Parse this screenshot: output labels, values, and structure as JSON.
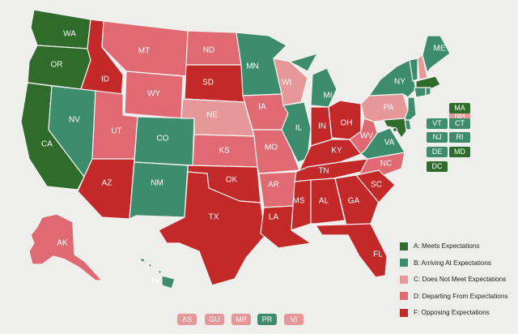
{
  "colors": {
    "A": "#2f6b2a",
    "B": "#3d8c6e",
    "C": "#e69898",
    "D": "#e06a74",
    "F": "#c4292a"
  },
  "legend": [
    {
      "grade": "A",
      "label": "A: Meets Expectations"
    },
    {
      "grade": "B",
      "label": "B: Arriving At Expectations"
    },
    {
      "grade": "C",
      "label": "C: Does Not Meet Expectations"
    },
    {
      "grade": "D",
      "label": "D: Departing From Expectations"
    },
    {
      "grade": "F",
      "label": "F: Opposing Expectations"
    }
  ],
  "states": {
    "WA": {
      "label": "WA",
      "grade": "A"
    },
    "OR": {
      "label": "OR",
      "grade": "A"
    },
    "CA": {
      "label": "CA",
      "grade": "A"
    },
    "ID": {
      "label": "ID",
      "grade": "F"
    },
    "NV": {
      "label": "NV",
      "grade": "B"
    },
    "MT": {
      "label": "MT",
      "grade": "D"
    },
    "WY": {
      "label": "WY",
      "grade": "D"
    },
    "UT": {
      "label": "UT",
      "grade": "D"
    },
    "AZ": {
      "label": "AZ",
      "grade": "F"
    },
    "CO": {
      "label": "CO",
      "grade": "B"
    },
    "NM": {
      "label": "NM",
      "grade": "B"
    },
    "ND": {
      "label": "ND",
      "grade": "D"
    },
    "SD": {
      "label": "SD",
      "grade": "F"
    },
    "NE": {
      "label": "NE",
      "grade": "C"
    },
    "KS": {
      "label": "KS",
      "grade": "D"
    },
    "OK": {
      "label": "OK",
      "grade": "F"
    },
    "TX": {
      "label": "TX",
      "grade": "F"
    },
    "MN": {
      "label": "MN",
      "grade": "B"
    },
    "IA": {
      "label": "IA",
      "grade": "D"
    },
    "MO": {
      "label": "MO",
      "grade": "D"
    },
    "AR": {
      "label": "AR",
      "grade": "D"
    },
    "LA": {
      "label": "LA",
      "grade": "F"
    },
    "WI": {
      "label": "WI",
      "grade": "C"
    },
    "IL": {
      "label": "IL",
      "grade": "B"
    },
    "MI": {
      "label": "MI",
      "grade": "B"
    },
    "IN": {
      "label": "IN",
      "grade": "F"
    },
    "OH": {
      "label": "OH",
      "grade": "F"
    },
    "KY": {
      "label": "KY",
      "grade": "F"
    },
    "TN": {
      "label": "TN",
      "grade": "F"
    },
    "MS": {
      "label": "MS",
      "grade": "F"
    },
    "AL": {
      "label": "AL",
      "grade": "F"
    },
    "GA": {
      "label": "GA",
      "grade": "F"
    },
    "FL": {
      "label": "FL",
      "grade": "F"
    },
    "SC": {
      "label": "SC",
      "grade": "F"
    },
    "NC": {
      "label": "NC",
      "grade": "D"
    },
    "VA": {
      "label": "VA",
      "grade": "B"
    },
    "WV": {
      "label": "WV",
      "grade": "D"
    },
    "PA": {
      "label": "PA",
      "grade": "C"
    },
    "NY": {
      "label": "NY",
      "grade": "B"
    },
    "ME": {
      "label": "ME",
      "grade": "B"
    },
    "VT": {
      "label": "VT",
      "grade": "B"
    },
    "NH": {
      "label": "NH",
      "grade": "C"
    },
    "MA": {
      "label": "MA",
      "grade": "A"
    },
    "RI": {
      "label": "RI",
      "grade": "B"
    },
    "CT": {
      "label": "CT",
      "grade": "B"
    },
    "NJ": {
      "label": "NJ",
      "grade": "B"
    },
    "DE": {
      "label": "DE",
      "grade": "B"
    },
    "MD": {
      "label": "MD",
      "grade": "A"
    },
    "DC": {
      "label": "DC",
      "grade": "A"
    },
    "AK": {
      "label": "AK",
      "grade": "D"
    },
    "HI": {
      "label": "HI",
      "grade": "B"
    }
  },
  "small_state_boxes": [
    {
      "label": "NH",
      "grade": "C"
    },
    {
      "label": "MA",
      "grade": "A"
    },
    {
      "label": "VT",
      "grade": "B"
    },
    {
      "label": "CT",
      "grade": "B"
    },
    {
      "label": "NJ",
      "grade": "B"
    },
    {
      "label": "RI",
      "grade": "B"
    },
    {
      "label": "DE",
      "grade": "B"
    },
    {
      "label": "MD",
      "grade": "A"
    },
    {
      "label": "DC",
      "grade": "A"
    }
  ],
  "territories": [
    {
      "label": "AS",
      "grade": "C"
    },
    {
      "label": "GU",
      "grade": "C"
    },
    {
      "label": "MP",
      "grade": "C"
    },
    {
      "label": "PR",
      "grade": "B"
    },
    {
      "label": "VI",
      "grade": "C"
    }
  ]
}
